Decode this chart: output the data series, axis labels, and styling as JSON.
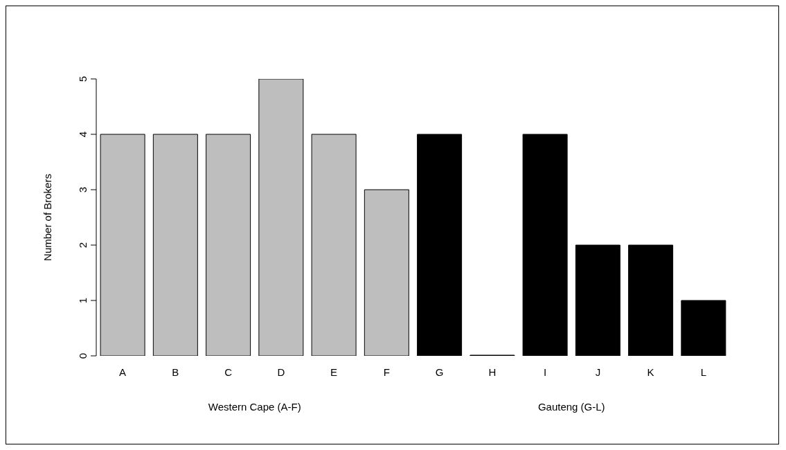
{
  "chart_data": {
    "type": "bar",
    "ylabel": "Number of Brokers",
    "categories": [
      "A",
      "B",
      "C",
      "D",
      "E",
      "F",
      "G",
      "H",
      "I",
      "J",
      "K",
      "L"
    ],
    "values": [
      4,
      4,
      4,
      5,
      4,
      3,
      4,
      0,
      4,
      2,
      2,
      1
    ],
    "colors": [
      "#bebebe",
      "#bebebe",
      "#bebebe",
      "#bebebe",
      "#bebebe",
      "#bebebe",
      "#000000",
      "#000000",
      "#000000",
      "#000000",
      "#000000",
      "#000000"
    ],
    "ylim": [
      0,
      5
    ],
    "yticks": [
      0,
      1,
      2,
      3,
      4,
      5
    ],
    "annotations": [
      "Western Cape (A-F)",
      "Gauteng (G-L)"
    ]
  }
}
